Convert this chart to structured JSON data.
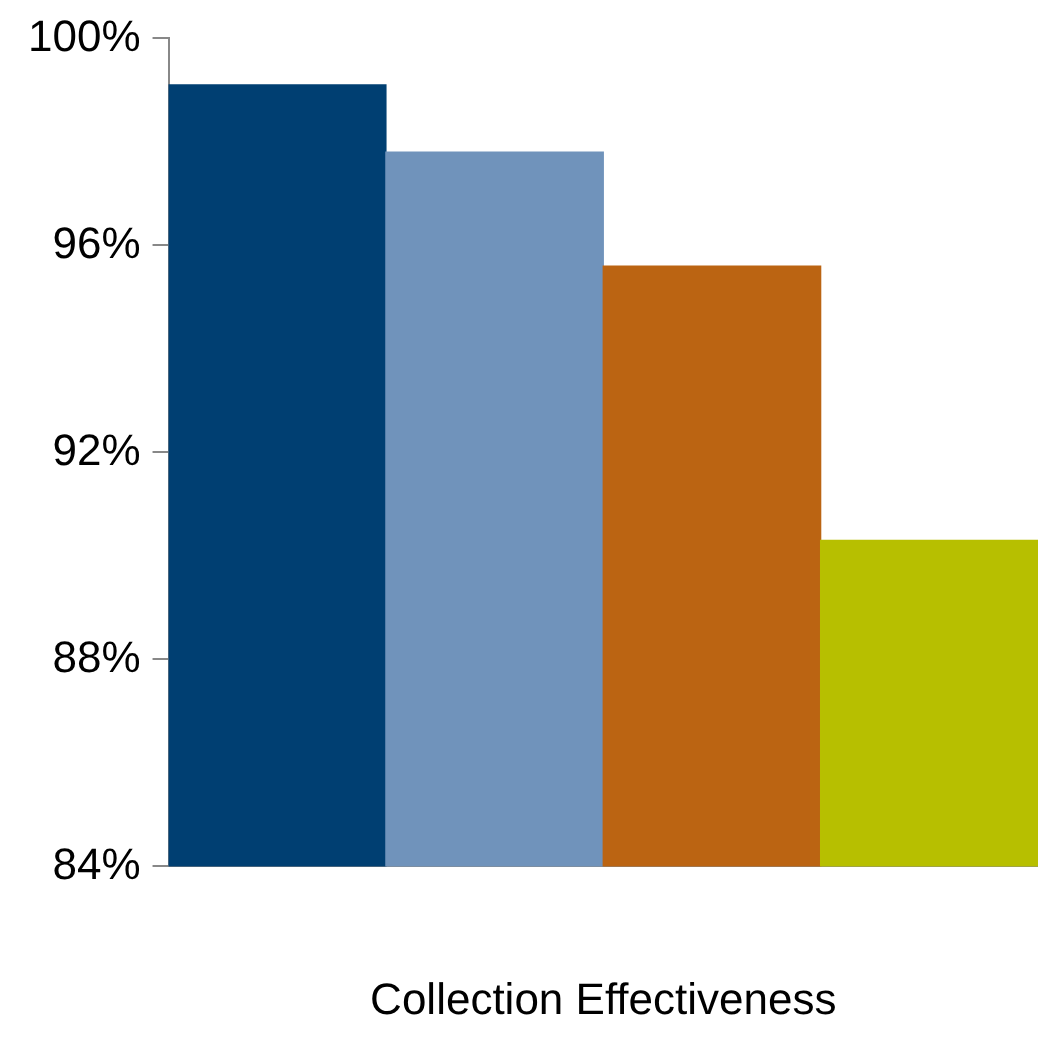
{
  "chart_data": {
    "type": "bar",
    "categories": [
      null,
      null,
      null,
      null
    ],
    "xlabel": "Collection Effectiveness",
    "values": [
      99.1,
      97.8,
      95.6,
      90.3
    ],
    "colors": [
      "#003f72",
      "#7093bb",
      "#bb6412",
      "#b7bf00"
    ],
    "ylim": [
      84,
      100
    ],
    "yticks": [
      {
        "value": 84,
        "label": "84%"
      },
      {
        "value": 88,
        "label": "88%"
      },
      {
        "value": 92,
        "label": "92%"
      },
      {
        "value": 96,
        "label": "96%"
      },
      {
        "value": 100,
        "label": "100%"
      }
    ],
    "grid": false,
    "legend": false
  }
}
